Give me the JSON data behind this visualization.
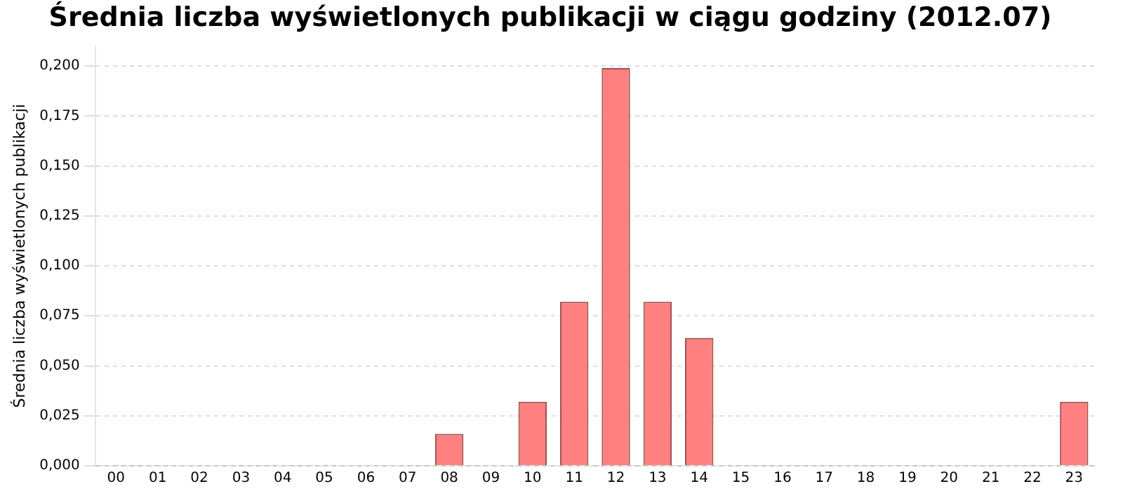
{
  "chart_data": {
    "type": "bar",
    "title": "Średnia liczba wyświetlonych publikacji w ciągu godziny (2012.07)",
    "ylabel": "Średnia liczba wyświetlonych publikacji",
    "categories": [
      "00",
      "01",
      "02",
      "03",
      "04",
      "05",
      "06",
      "07",
      "08",
      "09",
      "10",
      "11",
      "12",
      "13",
      "14",
      "15",
      "16",
      "17",
      "18",
      "19",
      "20",
      "21",
      "22",
      "23"
    ],
    "values": [
      0,
      0,
      0,
      0,
      0,
      0,
      0,
      0,
      0.016,
      0,
      0.032,
      0.082,
      0.199,
      0.082,
      0.064,
      0,
      0,
      0,
      0,
      0,
      0,
      0,
      0,
      0.032
    ],
    "color": "#ff8080",
    "ylim": [
      0,
      0.21
    ],
    "yticks": [
      {
        "value": 0,
        "label": "0,000"
      },
      {
        "value": 0.025,
        "label": "0,025"
      },
      {
        "value": 0.05,
        "label": "0,050"
      },
      {
        "value": 0.075,
        "label": "0,075"
      },
      {
        "value": 0.1,
        "label": "0,100"
      },
      {
        "value": 0.125,
        "label": "0,125"
      },
      {
        "value": 0.15,
        "label": "0,150"
      },
      {
        "value": 0.175,
        "label": "0,175"
      },
      {
        "value": 0.2,
        "label": "0,200"
      }
    ],
    "grid": "y",
    "legend": false
  }
}
